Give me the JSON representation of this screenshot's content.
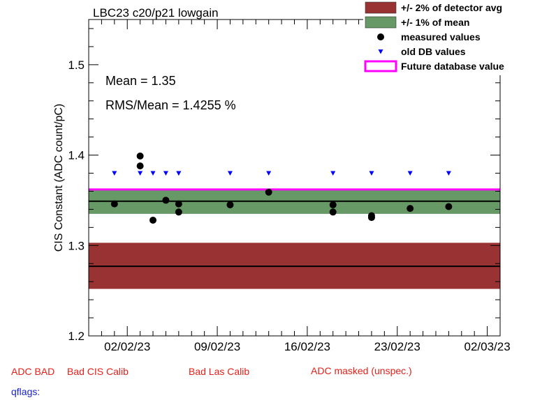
{
  "chart_data": {
    "type": "scatter",
    "title": "LBC23 c20/p21 lowgain",
    "ylabel": "CIS Constant (ADC count/pC)",
    "xlabel": "",
    "x_ticks": [
      "02/02/23",
      "09/02/23",
      "16/02/23",
      "23/02/23",
      "02/03/23"
    ],
    "ylim": [
      1.2,
      1.55
    ],
    "y_ticks": [
      "1.2",
      "1.3",
      "1.4",
      "1.5"
    ],
    "xlim": [
      "2023-01-30",
      "2023-03-03"
    ],
    "stats": {
      "mean_label": "Mean = 1.35",
      "rms_label": "RMS/Mean = 1.4255 %"
    },
    "detector_avg": 1.277,
    "detector_band": [
      1.252,
      1.303
    ],
    "mean_value": 1.349,
    "mean_band": [
      1.335,
      1.362
    ],
    "future_db_value": 1.362,
    "series": [
      {
        "name": "measured values",
        "points": [
          {
            "x": "2023-02-01",
            "y": 1.346
          },
          {
            "x": "2023-02-03",
            "y": 1.399
          },
          {
            "x": "2023-02-03",
            "y": 1.388
          },
          {
            "x": "2023-02-04",
            "y": 1.328
          },
          {
            "x": "2023-02-05",
            "y": 1.35
          },
          {
            "x": "2023-02-06",
            "y": 1.346
          },
          {
            "x": "2023-02-06",
            "y": 1.337
          },
          {
            "x": "2023-02-10",
            "y": 1.345
          },
          {
            "x": "2023-02-13",
            "y": 1.359
          },
          {
            "x": "2023-02-18",
            "y": 1.345
          },
          {
            "x": "2023-02-18",
            "y": 1.337
          },
          {
            "x": "2023-02-21",
            "y": 1.333
          },
          {
            "x": "2023-02-21",
            "y": 1.331
          },
          {
            "x": "2023-02-24",
            "y": 1.341
          },
          {
            "x": "2023-02-27",
            "y": 1.343
          }
        ]
      },
      {
        "name": "old DB values",
        "points": [
          {
            "x": "2023-02-01",
            "y": 1.38
          },
          {
            "x": "2023-02-03",
            "y": 1.38
          },
          {
            "x": "2023-02-04",
            "y": 1.38
          },
          {
            "x": "2023-02-05",
            "y": 1.38
          },
          {
            "x": "2023-02-06",
            "y": 1.38
          },
          {
            "x": "2023-02-06",
            "y": 1.38
          },
          {
            "x": "2023-02-10",
            "y": 1.38
          },
          {
            "x": "2023-02-13",
            "y": 1.38
          },
          {
            "x": "2023-02-18",
            "y": 1.38
          },
          {
            "x": "2023-02-21",
            "y": 1.38
          },
          {
            "x": "2023-02-24",
            "y": 1.38
          },
          {
            "x": "2023-02-27",
            "y": 1.38
          }
        ]
      }
    ],
    "legend": {
      "position": "top-right",
      "entries": [
        {
          "label": "+/- 2% of detector avg",
          "color": "#993333",
          "kind": "box"
        },
        {
          "label": "+/- 1% of mean",
          "color": "#669966",
          "kind": "box"
        },
        {
          "label": "measured values",
          "color": "#000000",
          "kind": "dot"
        },
        {
          "label": "old DB values",
          "color": "#0000ff",
          "kind": "triangle"
        },
        {
          "label": "Future database value",
          "color": "#ff00ff",
          "kind": "line"
        }
      ]
    },
    "colors": {
      "detector_band": "#993333",
      "mean_band": "#669966",
      "future_line": "#ff00ff",
      "measured": "#000000",
      "old_db": "#0000ff"
    }
  },
  "flags": {
    "adc_bad": "ADC BAD",
    "bad_cis_calib": "Bad CIS Calib",
    "bad_las_calib": "Bad Las Calib",
    "adc_masked": "ADC masked (unspec.)",
    "qflags_label": "qflags:"
  }
}
